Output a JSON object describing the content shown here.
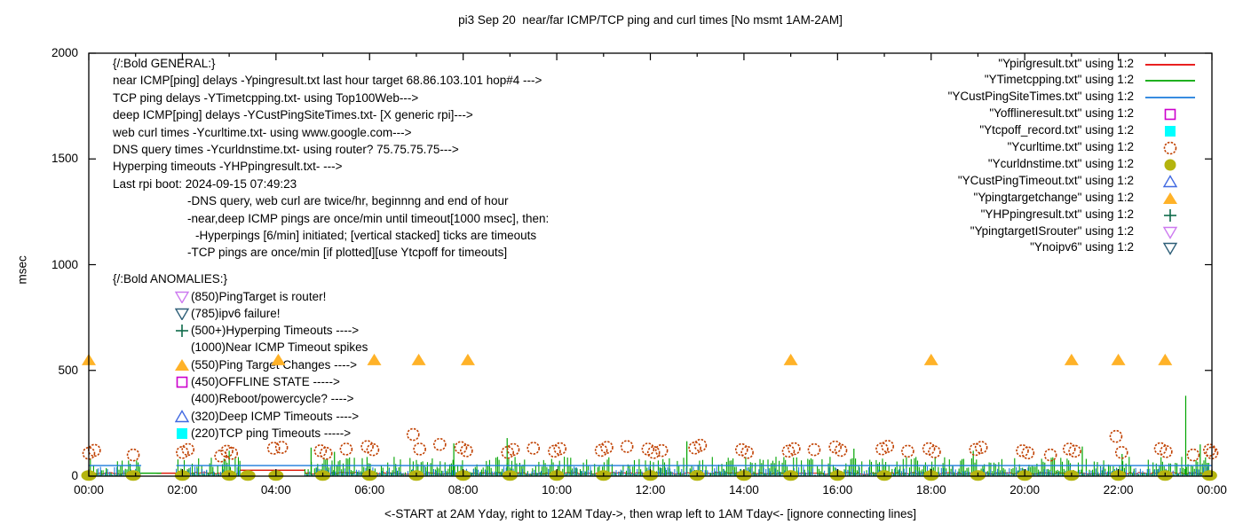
{
  "title": "pi3 Sep 20  near/far ICMP/TCP ping and curl times [No msmt 1AM-2AM]",
  "colors": {
    "red": "#dd1100",
    "green": "#00a400",
    "blue": "#1b7bdb",
    "magenta": "#cc00cc",
    "cyan": "#00ffff",
    "dark_orange": "#c04000",
    "olive": "#b4b40e",
    "royal_blue": "#4169e1",
    "orange": "#ffb228",
    "dark_green": "#0e6b4a",
    "violet": "#cd7af0",
    "dark_slate": "#2e5f78",
    "axis": "#000000"
  },
  "info_block": {
    "lines": [
      {
        "text": "{/:Bold GENERAL:}",
        "indent": 0
      },
      {
        "text": "near ICMP[ping] delays -Ypingresult.txt last hour target 68.86.103.101 hop#4 --->",
        "indent": 0
      },
      {
        "text": "TCP ping delays -YTimetcpping.txt- using Top100Web--->",
        "indent": 0
      },
      {
        "text": "deep ICMP[ping] delays -YCustPingSiteTimes.txt- [X generic rpi]--->",
        "indent": 0
      },
      {
        "text": "web curl times -Ycurltime.txt- using www.google.com--->",
        "indent": 0
      },
      {
        "text": "DNS query times -Ycurldnstime.txt- using router? 75.75.75.75--->",
        "indent": 0
      },
      {
        "text": "Hyperping timeouts -YHPpingresult.txt- --->",
        "indent": 0
      },
      {
        "text": "Last rpi boot: 2024-09-15 07:49:23",
        "indent": 0
      },
      {
        "text": "-DNS query, web curl are twice/hr, beginnng and end of hour",
        "indent": 84
      },
      {
        "text": "-near,deep ICMP pings are once/min until timeout[1000 msec], then:",
        "indent": 84
      },
      {
        "text": "-Hyperpings [6/min] initiated; [vertical stacked] ticks are timeouts",
        "indent": 93
      },
      {
        "text": "-TCP pings are once/min [if plotted][use Ytcpoff for timeouts]",
        "indent": 84
      }
    ]
  },
  "anomalies_block": {
    "heading": "{/:Bold ANOMALIES:}",
    "items": [
      {
        "marker": "tri-down-open",
        "marker_color": "#cd7af0",
        "text": "(850)PingTarget is router!"
      },
      {
        "marker": "tri-down-open",
        "marker_color": "#2e5f78",
        "text": "(785)ipv6 failure!"
      },
      {
        "marker": "plus",
        "marker_color": "#0e6b4a",
        "text": "(500+)Hyperping Timeouts ---->"
      },
      {
        "marker": "none",
        "marker_color": "",
        "text": "(1000)Near ICMP Timeout spikes"
      },
      {
        "marker": "tri-up-filled",
        "marker_color": "#ffb228",
        "text": "(550)Ping Target Changes ---->"
      },
      {
        "marker": "square-open",
        "marker_color": "#cc00cc",
        "text": "(450)OFFLINE STATE ----->"
      },
      {
        "marker": "none",
        "marker_color": "",
        "text": "(400)Reboot/powercycle? ---->"
      },
      {
        "marker": "tri-up-open",
        "marker_color": "#4169e1",
        "text": "(320)Deep ICMP Timeouts ---->"
      },
      {
        "marker": "square-filled",
        "marker_color": "#00ffff",
        "text": "(220)TCP ping Timeouts ----->"
      }
    ]
  },
  "legend": [
    {
      "label": "\"Ypingresult.txt\" using 1:2",
      "sample": "line",
      "color": "#e60000"
    },
    {
      "label": "\"YTimetcpping.txt\" using 1:2",
      "sample": "line",
      "color": "#00a400"
    },
    {
      "label": "\"YCustPingSiteTimes.txt\" using 1:2",
      "sample": "line",
      "color": "#1b7bdb"
    },
    {
      "label": "\"Yofflineresult.txt\" using 1:2",
      "sample": "square-open",
      "color": "#cc00cc"
    },
    {
      "label": "\"Ytcpoff_record.txt\" using 1:2",
      "sample": "square-filled",
      "color": "#00ffff"
    },
    {
      "label": "\"Ycurltime.txt\" using 1:2",
      "sample": "circle-open",
      "color": "#c04000"
    },
    {
      "label": "\"Ycurldnstime.txt\" using 1:2",
      "sample": "circle-filled",
      "color": "#b4b40e"
    },
    {
      "label": "\"YCustPingTimeout.txt\" using 1:2",
      "sample": "tri-up-open",
      "color": "#4169e1"
    },
    {
      "label": "\"Ypingtargetchange\" using 1:2",
      "sample": "tri-up-filled",
      "color": "#ffb228"
    },
    {
      "label": "\"YHPpingresult.txt\" using 1:2",
      "sample": "plus",
      "color": "#0e6b4a"
    },
    {
      "label": "\"YpingtargetISrouter\" using 1:2",
      "sample": "tri-down-open",
      "color": "#cd7af0"
    },
    {
      "label": "\"Ynoipv6\" using 1:2",
      "sample": "tri-down-open",
      "color": "#2e5f78"
    }
  ],
  "chart_data": {
    "type": "line",
    "title": "pi3 Sep 20  near/far ICMP/TCP ping and curl times [No msmt 1AM-2AM]",
    "xlabel": "<-START at 2AM Yday, right to 12AM Tday->, then wrap left to 1AM Tday<- [ignore connecting lines]",
    "ylabel": "msec",
    "xlim": [
      0,
      24
    ],
    "ylim": [
      0,
      2000
    ],
    "grid": false,
    "legend_position": "top-right",
    "x_ticks": [
      {
        "h": 0,
        "label": "00:00"
      },
      {
        "h": 2,
        "label": "02:00"
      },
      {
        "h": 4,
        "label": "04:00"
      },
      {
        "h": 6,
        "label": "06:00"
      },
      {
        "h": 8,
        "label": "08:00"
      },
      {
        "h": 10,
        "label": "10:00"
      },
      {
        "h": 12,
        "label": "12:00"
      },
      {
        "h": 14,
        "label": "14:00"
      },
      {
        "h": 16,
        "label": "16:00"
      },
      {
        "h": 18,
        "label": "18:00"
      },
      {
        "h": 20,
        "label": "20:00"
      },
      {
        "h": 22,
        "label": "22:00"
      },
      {
        "h": 24,
        "label": "00:00"
      }
    ],
    "y_ticks": [
      0,
      500,
      1000,
      1500,
      2000
    ],
    "measurement_gaps_hours": [
      [
        1.12,
        1.87
      ],
      [
        3.23,
        4.62
      ]
    ],
    "series": [
      {
        "name": "Ypingresult.txt",
        "kind": "near-icmp-ping",
        "style": "noise-line",
        "color": "#dd1100",
        "band_msec": [
          8,
          18
        ],
        "step_h": 0.06,
        "segments": [
          [
            0,
            1.12
          ],
          [
            1.87,
            3.23
          ],
          [
            4.62,
            24
          ]
        ],
        "flats": [
          [
            1.45,
            1.95,
            14
          ],
          [
            3.23,
            4.62,
            28
          ]
        ]
      },
      {
        "name": "YTimetcpping.txt",
        "kind": "tcp-ping",
        "style": "grass",
        "color": "#00a400",
        "band_msec": [
          4,
          92
        ],
        "step_h": 0.034,
        "segments": [
          [
            0,
            1.12
          ],
          [
            1.87,
            3.23
          ],
          [
            4.62,
            24
          ]
        ],
        "flats": [
          [
            1.08,
            1.55,
            14
          ]
        ],
        "spikes": [
          [
            3.0,
            120
          ],
          [
            4.75,
            135
          ],
          [
            5.25,
            115
          ],
          [
            7.8,
            155
          ],
          [
            8.94,
            180
          ],
          [
            12.78,
            165
          ],
          [
            16.35,
            130
          ],
          [
            18.9,
            120
          ],
          [
            21.23,
            140
          ],
          [
            22.08,
            105
          ],
          [
            23.44,
            380
          ],
          [
            23.75,
            150
          ]
        ]
      },
      {
        "name": "YCustPingSiteTimes.txt",
        "kind": "deep-icmp-ping",
        "style": "grass",
        "color": "#1b7bdb",
        "band_msec": [
          8,
          46
        ],
        "step_h": 0.05,
        "segments": [
          [
            0,
            1.12
          ],
          [
            1.87,
            3.23
          ],
          [
            4.62,
            24
          ]
        ],
        "line_level_msec": 50,
        "line_segments": [
          [
            0,
            1.12
          ],
          [
            1.87,
            24
          ]
        ]
      },
      {
        "name": "Yofflineresult.txt",
        "kind": "offline-state",
        "style": "points",
        "marker": "square-open",
        "color": "#cc00cc",
        "points": []
      },
      {
        "name": "Ytcpoff_record.txt",
        "kind": "tcp-timeouts",
        "style": "points",
        "marker": "square-filled",
        "color": "#00ffff",
        "points": []
      },
      {
        "name": "Ycurltime.txt",
        "kind": "web-curl-times",
        "style": "points",
        "marker": "circle-open",
        "color": "#c04000",
        "points": [
          [
            0,
            108
          ],
          [
            0.12,
            122
          ],
          [
            0.95,
            100
          ],
          [
            2.0,
            112
          ],
          [
            2.12,
            126
          ],
          [
            2.82,
            95
          ],
          [
            2.95,
            118
          ],
          [
            3.05,
            108
          ],
          [
            3.95,
            132
          ],
          [
            4.12,
            136
          ],
          [
            4.95,
            120
          ],
          [
            5.07,
            108
          ],
          [
            5.5,
            128
          ],
          [
            5.95,
            140
          ],
          [
            6.07,
            125
          ],
          [
            6.93,
            197
          ],
          [
            7.07,
            128
          ],
          [
            7.5,
            150
          ],
          [
            7.95,
            135
          ],
          [
            8.07,
            120
          ],
          [
            8.95,
            112
          ],
          [
            9.07,
            126
          ],
          [
            9.5,
            132
          ],
          [
            9.95,
            118
          ],
          [
            10.07,
            130
          ],
          [
            10.95,
            122
          ],
          [
            11.07,
            136
          ],
          [
            11.5,
            140
          ],
          [
            11.95,
            128
          ],
          [
            12.07,
            112
          ],
          [
            12.24,
            121
          ],
          [
            12.95,
            133
          ],
          [
            13.07,
            146
          ],
          [
            13.95,
            125
          ],
          [
            14.07,
            112
          ],
          [
            14.95,
            118
          ],
          [
            15.07,
            130
          ],
          [
            15.5,
            125
          ],
          [
            15.95,
            138
          ],
          [
            16.07,
            122
          ],
          [
            16.95,
            129
          ],
          [
            17.07,
            141
          ],
          [
            17.5,
            118
          ],
          [
            17.95,
            130
          ],
          [
            18.07,
            115
          ],
          [
            18.95,
            126
          ],
          [
            19.07,
            136
          ],
          [
            19.95,
            120
          ],
          [
            20.07,
            110
          ],
          [
            20.55,
            100
          ],
          [
            20.95,
            128
          ],
          [
            21.07,
            118
          ],
          [
            21.95,
            188
          ],
          [
            22.07,
            112
          ],
          [
            22.9,
            130
          ],
          [
            23.02,
            116
          ],
          [
            23.6,
            100
          ],
          [
            23.95,
            123
          ],
          [
            24.0,
            110
          ]
        ]
      },
      {
        "name": "Ycurldnstime.txt",
        "kind": "dns-query-times",
        "style": "points",
        "marker": "blob-filled",
        "color": "#b4b40e",
        "points": [
          [
            0,
            3
          ],
          [
            0.95,
            3
          ],
          [
            2,
            3
          ],
          [
            3,
            3
          ],
          [
            3.4,
            3
          ],
          [
            4,
            3
          ],
          [
            5,
            3
          ],
          [
            6,
            3
          ],
          [
            7,
            3
          ],
          [
            8,
            3
          ],
          [
            9,
            3
          ],
          [
            10,
            3
          ],
          [
            11,
            3
          ],
          [
            12,
            3
          ],
          [
            13,
            3
          ],
          [
            14,
            3
          ],
          [
            15,
            3
          ],
          [
            16,
            3
          ],
          [
            17,
            3
          ],
          [
            18,
            3
          ],
          [
            19,
            3
          ],
          [
            20,
            3
          ],
          [
            21,
            3
          ],
          [
            22,
            3
          ],
          [
            23,
            3
          ],
          [
            23.95,
            3
          ]
        ]
      },
      {
        "name": "YCustPingTimeout.txt",
        "kind": "deep-icmp-timeouts",
        "style": "points",
        "marker": "tri-up-open",
        "color": "#4169e1",
        "points": []
      },
      {
        "name": "Ypingtargetchange",
        "kind": "ping-target-changes",
        "style": "points",
        "marker": "tri-up-filled",
        "color": "#ffb228",
        "value_msec": 550,
        "points": [
          [
            0,
            550
          ],
          [
            4.05,
            550
          ],
          [
            6.1,
            550
          ],
          [
            7.05,
            550
          ],
          [
            8.1,
            550
          ],
          [
            15,
            550
          ],
          [
            18,
            550
          ],
          [
            21,
            550
          ],
          [
            22,
            550
          ],
          [
            23,
            550
          ]
        ]
      },
      {
        "name": "YHPpingresult.txt",
        "kind": "hyperping-timeouts",
        "style": "points",
        "marker": "plus",
        "color": "#0e6b4a",
        "points": []
      },
      {
        "name": "YpingtargetISrouter",
        "kind": "ping-target-is-router",
        "style": "points",
        "marker": "tri-down-open",
        "color": "#cd7af0",
        "points": []
      },
      {
        "name": "Ynoipv6",
        "kind": "ipv6-failure",
        "style": "points",
        "marker": "tri-down-open",
        "color": "#2e5f78",
        "points": []
      }
    ]
  }
}
